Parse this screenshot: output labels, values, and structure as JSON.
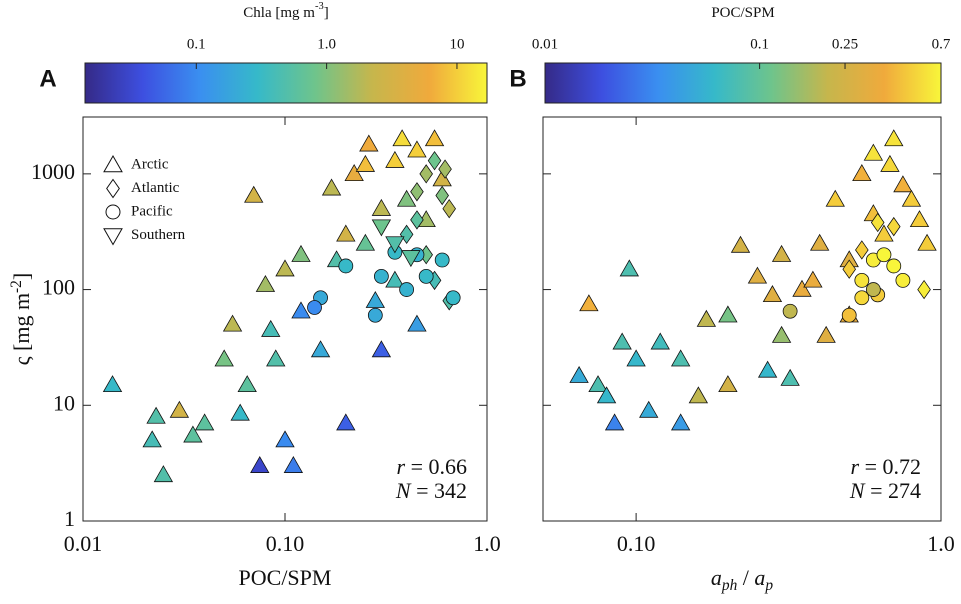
{
  "chart_data": [
    {
      "type": "scatter",
      "panel_label": "A",
      "colorbar": {
        "label": [
          {
            "text": "Chla [mg m"
          },
          {
            "text": "-3",
            "shift": "sup"
          },
          {
            "text": "]"
          }
        ],
        "lim": [
          0.014,
          17
        ],
        "log": true,
        "ticks": [
          0.1,
          {
            "value": 1,
            "label": "1.0"
          },
          10
        ],
        "colormap": [
          "#352a87",
          "#3d4fe0",
          "#3a8ff0",
          "#36b9c9",
          "#6ec48c",
          "#c6b64c",
          "#f0aa3c",
          "#f8f63a"
        ]
      },
      "xlabel": [
        {
          "text": "POC/SPM"
        }
      ],
      "ylabel": [
        {
          "text": "ς [mg m"
        },
        {
          "text": "-2",
          "shift": "sup"
        },
        {
          "text": "]"
        }
      ],
      "xlim": [
        0.01,
        1
      ],
      "ylim": [
        1,
        3100
      ],
      "log_x": true,
      "log_y": true,
      "xticks": [
        0.01,
        {
          "value": 0.1,
          "label": "0.10"
        },
        {
          "value": 1,
          "label": "1.0"
        }
      ],
      "yticks": [
        1,
        10,
        100,
        1000
      ],
      "legend": "upper left",
      "annotations": [
        [
          {
            "text": "r",
            "italic": true
          },
          {
            "text": " = 0.66"
          }
        ],
        [
          {
            "text": "N",
            "italic": true
          },
          {
            "text": " = 342"
          }
        ]
      ],
      "series": [
        {
          "name": "Arctic",
          "marker": "triangle-up",
          "x": [
            0.014,
            0.022,
            0.023,
            0.025,
            0.03,
            0.035,
            0.04,
            0.05,
            0.055,
            0.06,
            0.065,
            0.07,
            0.075,
            0.08,
            0.085,
            0.09,
            0.1,
            0.11,
            0.1,
            0.12,
            0.12,
            0.15,
            0.17,
            0.2,
            0.2,
            0.22,
            0.25,
            0.28,
            0.3,
            0.35,
            0.38,
            0.4,
            0.45,
            0.5,
            0.55,
            0.45,
            0.35,
            0.25,
            0.6,
            0.3,
            0.18,
            0.26
          ],
          "y": [
            15,
            5,
            8,
            2.5,
            9,
            5.5,
            7,
            25,
            50,
            8.5,
            15,
            650,
            3,
            110,
            45,
            25,
            5,
            3,
            150,
            200,
            65,
            30,
            750,
            7,
            300,
            1000,
            1200,
            80,
            30,
            1300,
            2000,
            600,
            1600,
            400,
            2000,
            50,
            120,
            250,
            900,
            500,
            180,
            1800
          ],
          "c": [
            0.3,
            0.4,
            0.5,
            0.5,
            3,
            0.6,
            0.6,
            0.9,
            2,
            0.3,
            0.6,
            3,
            0.03,
            1.5,
            0.4,
            0.5,
            0.1,
            0.08,
            2,
            1,
            0.1,
            0.2,
            2,
            0.05,
            3,
            5,
            8,
            0.2,
            0.05,
            10,
            12,
            1,
            10,
            1.5,
            8,
            0.15,
            0.4,
            0.7,
            3,
            2,
            0.5,
            6
          ]
        },
        {
          "name": "Atlantic",
          "marker": "diamond",
          "x": [
            0.4,
            0.45,
            0.5,
            0.55,
            0.6,
            0.65,
            0.5,
            0.55,
            0.65,
            0.45,
            0.62
          ],
          "y": [
            300,
            700,
            1000,
            1300,
            650,
            500,
            200,
            120,
            80,
            400,
            1100
          ],
          "c": [
            0.5,
            1.2,
            1.5,
            0.8,
            1,
            2,
            0.8,
            0.4,
            0.5,
            0.6,
            1.5
          ]
        },
        {
          "name": "Pacific",
          "marker": "circle",
          "x": [
            0.15,
            0.2,
            0.28,
            0.3,
            0.35,
            0.4,
            0.45,
            0.5,
            0.6,
            0.14,
            0.68
          ],
          "y": [
            85,
            160,
            60,
            130,
            210,
            100,
            200,
            130,
            180,
            70,
            85
          ],
          "c": [
            0.2,
            0.3,
            0.2,
            0.25,
            0.3,
            0.25,
            0.25,
            0.3,
            0.3,
            0.1,
            0.3
          ]
        },
        {
          "name": "Southern",
          "marker": "triangle-down",
          "x": [
            0.35,
            0.42,
            0.3
          ],
          "y": [
            250,
            190,
            350
          ],
          "c": [
            0.5,
            0.6,
            0.8
          ]
        }
      ]
    },
    {
      "type": "scatter",
      "panel_label": "B",
      "colorbar": {
        "label": [
          {
            "text": "POC/SPM"
          }
        ],
        "lim": [
          0.01,
          0.7
        ],
        "log": true,
        "ticks": [
          0.01,
          0.1,
          0.25,
          0.7
        ],
        "colormap": [
          "#352a87",
          "#3d4fe0",
          "#3a8ff0",
          "#36b9c9",
          "#6ec48c",
          "#c6b64c",
          "#f0aa3c",
          "#f8f63a"
        ]
      },
      "xlabel": [
        {
          "text": "a",
          "italic": true
        },
        {
          "text": "ph",
          "shift": "sub",
          "italic": true
        },
        {
          "text": " / "
        },
        {
          "text": "a",
          "italic": true
        },
        {
          "text": "p",
          "shift": "sub",
          "italic": true
        }
      ],
      "xlim": [
        0.0495,
        1
      ],
      "ylim": [
        1,
        3100
      ],
      "log_x": true,
      "log_y": true,
      "xticks": [
        {
          "value": 0.1,
          "label": "0.10"
        },
        {
          "value": 1,
          "label": "1.0"
        }
      ],
      "yticks": [
        1,
        10,
        100,
        1000
      ],
      "annotations": [
        [
          {
            "text": "r",
            "italic": true
          },
          {
            "text": " = 0.72"
          }
        ],
        [
          {
            "text": "N",
            "italic": true
          },
          {
            "text": " = 274"
          }
        ]
      ],
      "series": [
        {
          "marker": "triangle-up",
          "x": [
            0.065,
            0.07,
            0.075,
            0.08,
            0.085,
            0.09,
            0.095,
            0.1,
            0.11,
            0.12,
            0.14,
            0.14,
            0.16,
            0.17,
            0.2,
            0.2,
            0.25,
            0.22,
            0.27,
            0.3,
            0.32,
            0.3,
            0.35,
            0.4,
            0.45,
            0.5,
            0.55,
            0.6,
            0.65,
            0.7,
            0.75,
            0.8,
            0.85,
            0.9,
            0.5,
            0.42,
            0.6,
            0.38,
            0.28,
            0.68
          ],
          "y": [
            18,
            75,
            15,
            12,
            7,
            35,
            150,
            25,
            9,
            35,
            25,
            7,
            12,
            55,
            60,
            15,
            130,
            240,
            20,
            40,
            17,
            200,
            100,
            250,
            600,
            180,
            1000,
            1500,
            300,
            2000,
            800,
            600,
            400,
            250,
            60,
            40,
            450,
            120,
            90,
            1200
          ],
          "c": [
            0.05,
            0.4,
            0.08,
            0.06,
            0.03,
            0.08,
            0.08,
            0.06,
            0.05,
            0.07,
            0.08,
            0.04,
            0.2,
            0.2,
            0.12,
            0.25,
            0.3,
            0.25,
            0.06,
            0.15,
            0.08,
            0.25,
            0.35,
            0.3,
            0.5,
            0.3,
            0.4,
            0.6,
            0.5,
            0.6,
            0.4,
            0.5,
            0.5,
            0.5,
            0.35,
            0.3,
            0.45,
            0.35,
            0.3,
            0.55
          ]
        },
        {
          "marker": "diamond",
          "x": [
            0.55,
            0.62,
            0.7,
            0.88,
            0.5
          ],
          "y": [
            220,
            380,
            350,
            100,
            150
          ],
          "c": [
            0.5,
            0.6,
            0.55,
            0.65,
            0.5
          ]
        },
        {
          "marker": "circle",
          "x": [
            0.55,
            0.6,
            0.65,
            0.7,
            0.75,
            0.55,
            0.62,
            0.5,
            0.32,
            0.6
          ],
          "y": [
            120,
            180,
            200,
            160,
            120,
            85,
            90,
            60,
            65,
            100
          ],
          "c": [
            0.6,
            0.65,
            0.7,
            0.7,
            0.65,
            0.55,
            0.5,
            0.45,
            0.2,
            0.2
          ]
        }
      ]
    }
  ]
}
